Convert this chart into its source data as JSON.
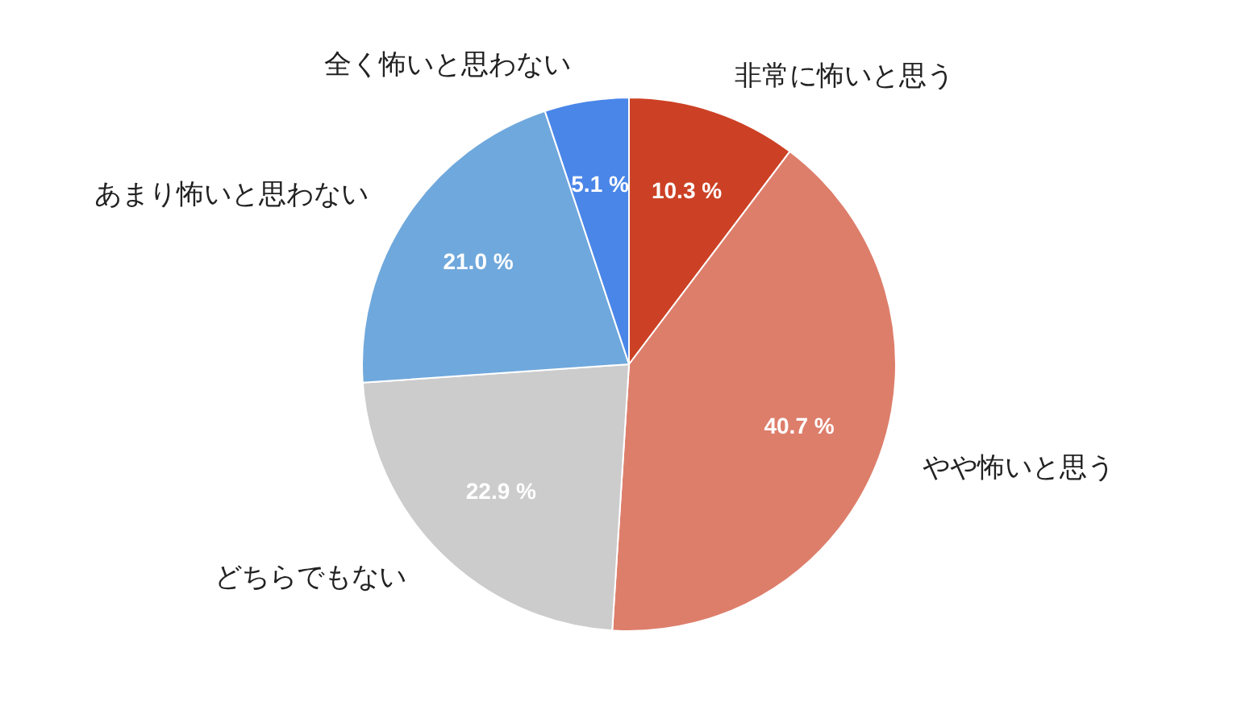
{
  "chart_data": {
    "type": "pie",
    "categories": [
      "非常に怖いと思う",
      "やや怖いと思う",
      "どちらでもない",
      "あまり怖いと思わない",
      "全く怖いと思わない"
    ],
    "values": [
      10.3,
      40.7,
      22.9,
      21.0,
      5.1
    ],
    "colors": [
      "#cc4125",
      "#dd7e6b",
      "#cccccc",
      "#6fa8dc",
      "#4a86e8"
    ],
    "value_labels": [
      "10.3 %",
      "40.7 %",
      "22.9 %",
      "21.0 %",
      "5.1 %"
    ],
    "legend": false
  }
}
